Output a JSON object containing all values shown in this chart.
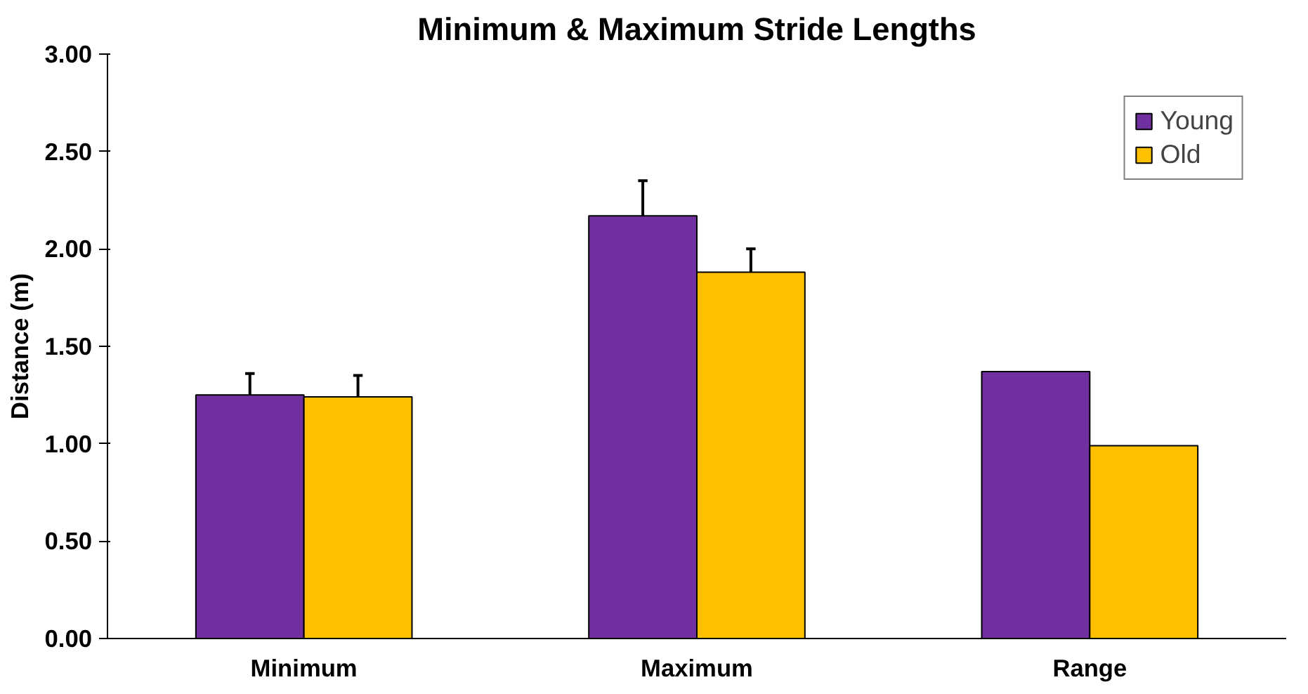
{
  "chart_data": {
    "type": "bar",
    "title": "Minimum & Maximum Stride Lengths",
    "ylabel": "Distance (m)",
    "categories": [
      "Minimum",
      "Maximum",
      "Range"
    ],
    "series": [
      {
        "name": "Young",
        "color": "#7030a0",
        "values": [
          1.25,
          2.17,
          1.37
        ],
        "errors": [
          [
            1.25,
            1.36
          ],
          [
            2.17,
            2.35
          ],
          null
        ]
      },
      {
        "name": "Old",
        "color": "#ffc000",
        "values": [
          1.24,
          1.88,
          0.99
        ],
        "errors": [
          [
            1.24,
            1.35
          ],
          [
            1.88,
            2.0
          ],
          null
        ]
      }
    ],
    "ylim": [
      0,
      3
    ],
    "yticks": [
      {
        "value": 0,
        "label": "0.00"
      },
      {
        "value": 0.5,
        "label": "0.50"
      },
      {
        "value": 1,
        "label": "1.00"
      },
      {
        "value": 1.5,
        "label": "1.50"
      },
      {
        "value": 2,
        "label": "2.00"
      },
      {
        "value": 2.5,
        "label": "2.50"
      },
      {
        "value": 3,
        "label": "3.00"
      }
    ],
    "grid": false,
    "legend": "top right"
  }
}
